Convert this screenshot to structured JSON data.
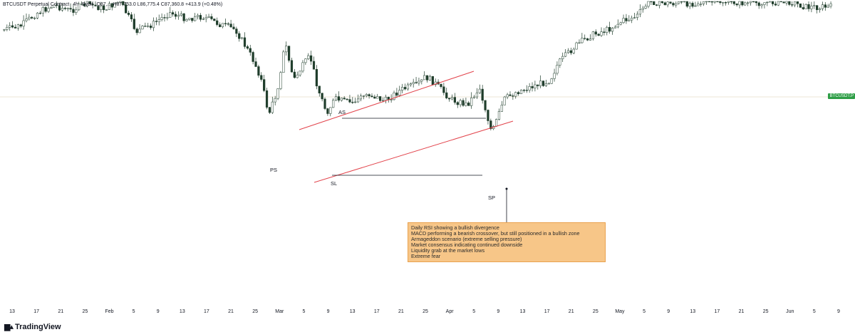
{
  "legend": {
    "symbol": "BTCUSDT Perpetual Contract",
    "timeframe": "4h",
    "exchange": "Bybit",
    "ohlc": "O87,... H87,753.0 L86,775.4 C87,360.8 +413.9 (+0.48%)"
  },
  "price_tag": "BTCUSDT.P",
  "labels": {
    "ps": "PS",
    "as": "AS",
    "sl": "SL",
    "sp": "SP"
  },
  "note": {
    "lines": [
      "Daily RSI showing a bullish divergence",
      "MACD performing a bearish crossover, but still positioned in a bullish zone",
      "Armageddon scenario (extreme selling pressure)",
      "Market consensus indicating continued downside",
      "Liquidity grab at the market lows",
      "Extreme fear"
    ]
  },
  "x_axis_ticks": [
    "13",
    "17",
    "21",
    "25",
    "Feb",
    "5",
    "9",
    "13",
    "17",
    "21",
    "25",
    "Mar",
    "5",
    "9",
    "13",
    "17",
    "21",
    "25",
    "Apr",
    "5",
    "9",
    "13",
    "17",
    "21",
    "25",
    "May",
    "5",
    "9",
    "13",
    "17",
    "21",
    "25",
    "Jun",
    "5",
    "9"
  ],
  "brand": "TradingView",
  "colors": {
    "candle": "#1f3d2b",
    "channel": "#e2434b",
    "level": "#131722",
    "price_line": "#e8dcc8",
    "tag": "#2e9e46"
  },
  "chart_data": {
    "type": "candlestick",
    "title": "BTCUSDT Perpetual Contract · 4h · Bybit",
    "xlabel": "",
    "ylabel": "",
    "x_ticks": [
      "13",
      "17",
      "21",
      "25",
      "Feb",
      "5",
      "9",
      "13",
      "17",
      "21",
      "25",
      "Mar",
      "5",
      "9",
      "13",
      "17",
      "21",
      "25",
      "Apr",
      "5",
      "9",
      "13",
      "17",
      "21",
      "25",
      "May",
      "5",
      "9",
      "13",
      "17",
      "21",
      "25",
      "Jun",
      "5",
      "9"
    ],
    "grid": false,
    "series": [
      {
        "close_path_norm": [
          [
            0.0,
            0.15
          ],
          [
            0.02,
            0.13
          ],
          [
            0.04,
            0.06
          ],
          [
            0.06,
            0.02
          ],
          [
            0.08,
            0.05
          ],
          [
            0.1,
            0.01
          ],
          [
            0.12,
            0.04
          ],
          [
            0.14,
            0.0
          ],
          [
            0.16,
            0.16
          ],
          [
            0.18,
            0.12
          ],
          [
            0.2,
            0.06
          ],
          [
            0.22,
            0.09
          ],
          [
            0.24,
            0.08
          ],
          [
            0.26,
            0.12
          ],
          [
            0.28,
            0.15
          ],
          [
            0.3,
            0.3
          ],
          [
            0.31,
            0.4
          ],
          [
            0.32,
            0.6
          ],
          [
            0.33,
            0.48
          ],
          [
            0.34,
            0.22
          ],
          [
            0.35,
            0.42
          ],
          [
            0.36,
            0.35
          ],
          [
            0.37,
            0.29
          ],
          [
            0.38,
            0.47
          ],
          [
            0.39,
            0.59
          ],
          [
            0.4,
            0.52
          ],
          [
            0.42,
            0.54
          ],
          [
            0.44,
            0.49
          ],
          [
            0.46,
            0.53
          ],
          [
            0.48,
            0.47
          ],
          [
            0.5,
            0.44
          ],
          [
            0.51,
            0.4
          ],
          [
            0.52,
            0.43
          ],
          [
            0.54,
            0.52
          ],
          [
            0.56,
            0.55
          ],
          [
            0.575,
            0.46
          ],
          [
            0.59,
            0.7
          ],
          [
            0.605,
            0.52
          ],
          [
            0.62,
            0.48
          ],
          [
            0.64,
            0.45
          ],
          [
            0.66,
            0.42
          ],
          [
            0.67,
            0.33
          ],
          [
            0.69,
            0.24
          ],
          [
            0.71,
            0.18
          ],
          [
            0.73,
            0.15
          ],
          [
            0.75,
            0.1
          ],
          [
            0.765,
            0.08
          ],
          [
            0.78,
            0.0
          ],
          [
            0.8,
            0.01
          ],
          [
            0.83,
            0.01
          ],
          [
            0.87,
            0.0
          ],
          [
            0.9,
            0.01
          ],
          [
            0.95,
            0.0
          ],
          [
            0.97,
            0.03
          ]
        ]
      }
    ],
    "current_price": "87,360.8",
    "change": "+413.9 (+0.48%)"
  }
}
